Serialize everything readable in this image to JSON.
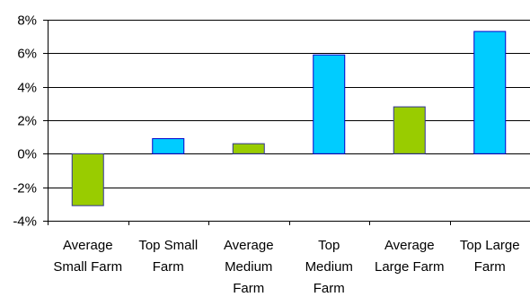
{
  "chart_data": {
    "type": "bar",
    "title": "",
    "xlabel": "",
    "ylabel": "",
    "ylim": [
      -4,
      8
    ],
    "yticks": [
      8,
      6,
      4,
      2,
      0,
      -2,
      -4
    ],
    "ytick_labels": [
      "8%",
      "6%",
      "4%",
      "2%",
      "0%",
      "-2%",
      "-4%"
    ],
    "grid": true,
    "legend": "none",
    "categories": [
      [
        "Average",
        "Small Farm"
      ],
      [
        "Top Small",
        "Farm"
      ],
      [
        "Average",
        "Medium",
        "Farm"
      ],
      [
        "Top",
        "Medium",
        "Farm"
      ],
      [
        "Average",
        "Large Farm"
      ],
      [
        "Top Large",
        "Farm"
      ]
    ],
    "values": [
      -3.1,
      0.9,
      0.6,
      5.9,
      2.8,
      7.3
    ],
    "bar_colors": [
      "#99CC00",
      "#00CCFF",
      "#99CC00",
      "#00CCFF",
      "#99CC00",
      "#00CCFF"
    ],
    "bar_edge_colors": [
      "#333399",
      "#0000CC",
      "#333399",
      "#0000CC",
      "#333399",
      "#0000CC"
    ],
    "grid_color": "#000000",
    "axis_color": "#000000"
  }
}
